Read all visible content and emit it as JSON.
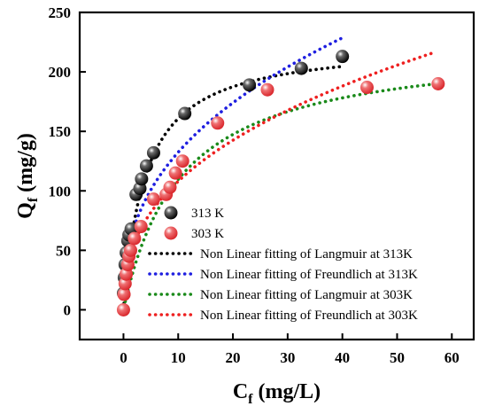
{
  "chart_data": {
    "type": "scatter",
    "xlabel": {
      "main": "C",
      "sub": "f",
      "rest": " (mg/L)"
    },
    "ylabel": {
      "main": "Q",
      "sub": "f",
      "rest": " (mg/g)"
    },
    "xlim": [
      -8,
      64
    ],
    "ylim": [
      -25,
      250
    ],
    "xticks": [
      0,
      10,
      20,
      30,
      40,
      50,
      60
    ],
    "yticks": [
      0,
      50,
      100,
      150,
      200,
      250
    ],
    "legend_position": "lower-right",
    "series": [
      {
        "name": "313 K",
        "kind": "points",
        "color": "#000000",
        "x": [
          0.0,
          0.15,
          0.3,
          0.5,
          0.8,
          1.0,
          1.4,
          2.3,
          3.0,
          3.3,
          4.2,
          5.5,
          11.2,
          23.0,
          32.5,
          40.0
        ],
        "y": [
          14,
          27,
          38,
          48,
          58,
          63,
          68,
          97,
          102,
          110,
          121,
          132,
          165,
          189,
          203,
          213
        ]
      },
      {
        "name": "303 K",
        "kind": "points",
        "color": "#e8393c",
        "x": [
          0.0,
          0.1,
          0.3,
          0.5,
          0.8,
          1.0,
          1.3,
          2.0,
          3.2,
          5.5,
          7.8,
          8.5,
          9.5,
          10.8,
          17.2,
          26.3,
          44.5,
          57.5
        ],
        "y": [
          0,
          13,
          22,
          30,
          38,
          45,
          50,
          60,
          70,
          93,
          97,
          103,
          115,
          125,
          157,
          185,
          187,
          190
        ]
      },
      {
        "name": "Non Linear fitting of Langmuir at 313K",
        "kind": "fit",
        "model": "langmuir",
        "color": "#000000",
        "qm": 225,
        "k": 0.25,
        "x_range": [
          0.1,
          40
        ]
      },
      {
        "name": "Non Linear fitting of Freundlich at 313K",
        "kind": "fit",
        "model": "freundlich",
        "color": "#1f1fe0",
        "kf": 53.5,
        "n": 2.54,
        "x_range": [
          0.1,
          40
        ]
      },
      {
        "name": "Non Linear fitting of Langmuir at 303K",
        "kind": "fit",
        "model": "langmuir",
        "color": "#1a8a1a",
        "qm": 225,
        "k": 0.095,
        "x_range": [
          0.1,
          57
        ]
      },
      {
        "name": "Non Linear fitting of Freundlich at 303K",
        "kind": "fit",
        "model": "freundlich",
        "color": "#ee2020",
        "kf": 43,
        "n": 2.5,
        "x_range": [
          0.1,
          57
        ]
      }
    ]
  }
}
